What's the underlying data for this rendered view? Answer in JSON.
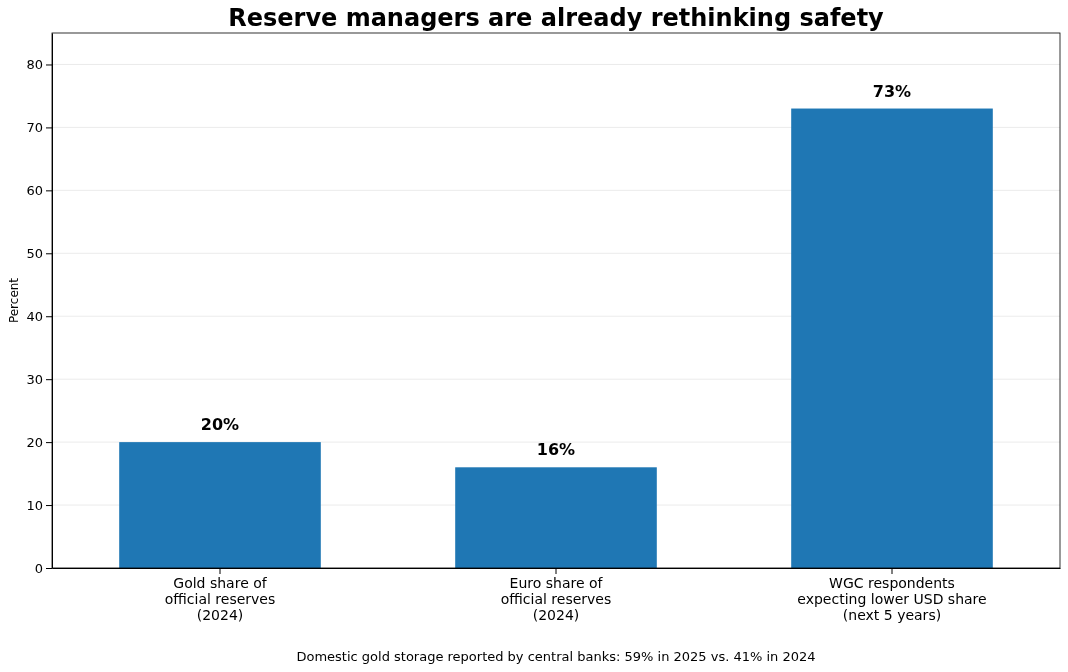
{
  "chart_data": {
    "type": "bar",
    "title": "Reserve managers are already rethinking safety",
    "ylabel": "Percent",
    "categories": [
      "Gold share of\nofficial reserves\n(2024)",
      "Euro share of\nofficial reserves\n(2024)",
      "WGC respondents\nexpecting lower USD share\n(next 5 years)"
    ],
    "values": [
      20,
      16,
      73
    ],
    "color": "#1f77b4",
    "value_labels": [
      "20%",
      "16%",
      "73%"
    ],
    "ylim": [
      0,
      85
    ],
    "yticks": [
      0,
      10,
      20,
      30,
      40,
      50,
      60,
      70,
      80
    ],
    "grid": "y",
    "annotations": [
      "Domestic gold storage reported by central banks: 59% in 2025 vs. 41% in 2024"
    ]
  }
}
